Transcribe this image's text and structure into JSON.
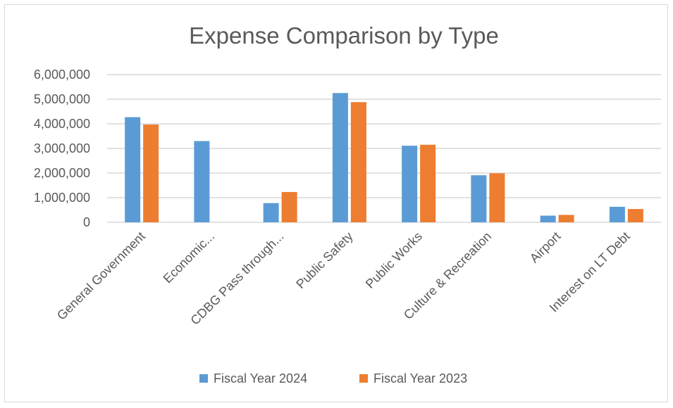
{
  "chart_data": {
    "type": "bar",
    "title": "Expense Comparison by Type",
    "xlabel": "",
    "ylabel": "",
    "ylim": [
      0,
      6000000
    ],
    "y_ticks": [
      "0",
      "1,000,000",
      "2,000,000",
      "3,000,000",
      "4,000,000",
      "5,000,000",
      "6,000,000"
    ],
    "categories": [
      "General Government",
      "Economic...",
      "CDBG Pass through...",
      "Public Safety",
      "Public Works",
      "Culture & Recreation",
      "Airport",
      "Interest on LT Debt"
    ],
    "series": [
      {
        "name": "Fiscal Year 2024",
        "color": "#5b9bd5",
        "values": [
          4270000,
          3300000,
          780000,
          5250000,
          3110000,
          1910000,
          270000,
          630000
        ]
      },
      {
        "name": "Fiscal Year 2023",
        "color": "#ed7d31",
        "values": [
          3970000,
          0,
          1230000,
          4880000,
          3150000,
          1990000,
          300000,
          540000
        ]
      }
    ],
    "grid": true,
    "legend_position": "bottom"
  }
}
